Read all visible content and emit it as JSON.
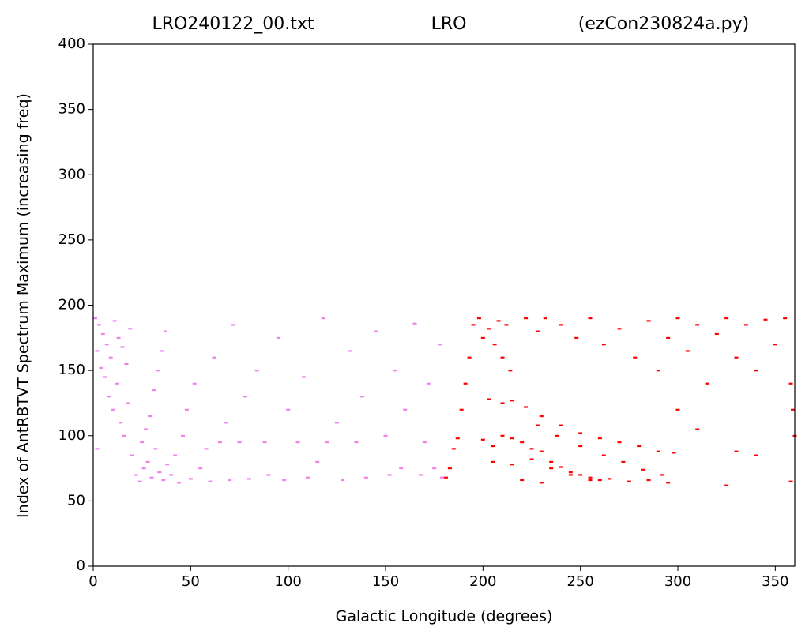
{
  "chart_data": {
    "type": "scatter",
    "title_parts": [
      "LRO240122_00.txt",
      "LRO",
      "(ezCon230824a.py)"
    ],
    "x_label": "Galactic Longitude (degrees)",
    "y_label": "Index of AntRBTVT Spectrum Maximum (increasing freq)",
    "xlim": [
      0,
      360
    ],
    "ylim": [
      0,
      400
    ],
    "xticks": [
      0,
      50,
      100,
      150,
      200,
      250,
      300,
      350
    ],
    "yticks": [
      0,
      50,
      100,
      150,
      200,
      250,
      300,
      350,
      400
    ],
    "grid": false,
    "series": [
      {
        "color": "#ee82ee",
        "x": [
          1,
          3,
          5,
          7,
          2,
          9,
          4,
          11,
          13,
          6,
          15,
          8,
          12,
          17,
          10,
          19,
          14,
          16,
          2,
          18,
          20,
          22,
          24,
          26,
          28,
          30,
          32,
          34,
          36,
          38,
          25,
          27,
          29,
          31,
          33,
          35,
          37,
          40,
          42,
          44,
          46,
          48,
          50,
          52,
          55,
          58,
          60,
          62,
          65,
          68,
          70,
          72,
          75,
          78,
          80,
          84,
          88,
          90,
          95,
          98,
          100,
          105,
          108,
          110,
          115,
          118,
          120,
          125,
          128,
          132,
          135,
          138,
          140,
          145,
          150,
          152,
          155,
          158,
          160,
          165,
          168,
          170,
          172,
          175,
          178,
          179
        ],
        "values": [
          190,
          185,
          178,
          170,
          165,
          160,
          152,
          188,
          175,
          145,
          168,
          130,
          140,
          155,
          120,
          182,
          110,
          100,
          90,
          125,
          85,
          70,
          65,
          75,
          80,
          68,
          90,
          72,
          66,
          78,
          95,
          105,
          115,
          135,
          150,
          165,
          180,
          70,
          85,
          64,
          100,
          120,
          67,
          140,
          75,
          90,
          65,
          160,
          95,
          110,
          66,
          185,
          95,
          130,
          67,
          150,
          95,
          70,
          175,
          66,
          120,
          95,
          145,
          68,
          80,
          190,
          95,
          110,
          66,
          165,
          95,
          130,
          68,
          180,
          100,
          70,
          150,
          75,
          120,
          186,
          70,
          95,
          140,
          75,
          170,
          68
        ]
      },
      {
        "color": "#ff0000",
        "x": [
          181,
          183,
          185,
          187,
          189,
          191,
          193,
          195,
          198,
          200,
          203,
          206,
          208,
          210,
          212,
          214,
          200,
          205,
          210,
          215,
          220,
          225,
          230,
          235,
          240,
          245,
          250,
          255,
          260,
          203,
          210,
          215,
          222,
          230,
          240,
          250,
          260,
          270,
          280,
          290,
          298,
          205,
          215,
          225,
          235,
          245,
          255,
          265,
          275,
          285,
          295,
          220,
          230,
          228,
          238,
          250,
          262,
          272,
          282,
          292,
          222,
          228,
          232,
          240,
          248,
          255,
          262,
          270,
          278,
          285,
          290,
          295,
          300,
          305,
          310,
          315,
          320,
          325,
          330,
          335,
          340,
          345,
          350,
          355,
          358,
          359,
          360,
          330,
          325,
          340,
          358,
          300,
          310
        ],
        "values": [
          68,
          75,
          90,
          98,
          120,
          140,
          160,
          185,
          190,
          175,
          182,
          170,
          188,
          160,
          185,
          150,
          97,
          92,
          100,
          98,
          95,
          90,
          88,
          80,
          76,
          72,
          70,
          68,
          66,
          128,
          125,
          127,
          122,
          115,
          108,
          102,
          98,
          95,
          92,
          88,
          87,
          80,
          78,
          82,
          75,
          70,
          66,
          67,
          65,
          66,
          64,
          66,
          64,
          108,
          100,
          92,
          85,
          80,
          74,
          70,
          190,
          180,
          190,
          185,
          175,
          190,
          170,
          182,
          160,
          188,
          150,
          175,
          190,
          165,
          185,
          140,
          178,
          190,
          160,
          185,
          150,
          189,
          170,
          190,
          140,
          120,
          100,
          88,
          62,
          85,
          65,
          120,
          105
        ]
      }
    ]
  }
}
